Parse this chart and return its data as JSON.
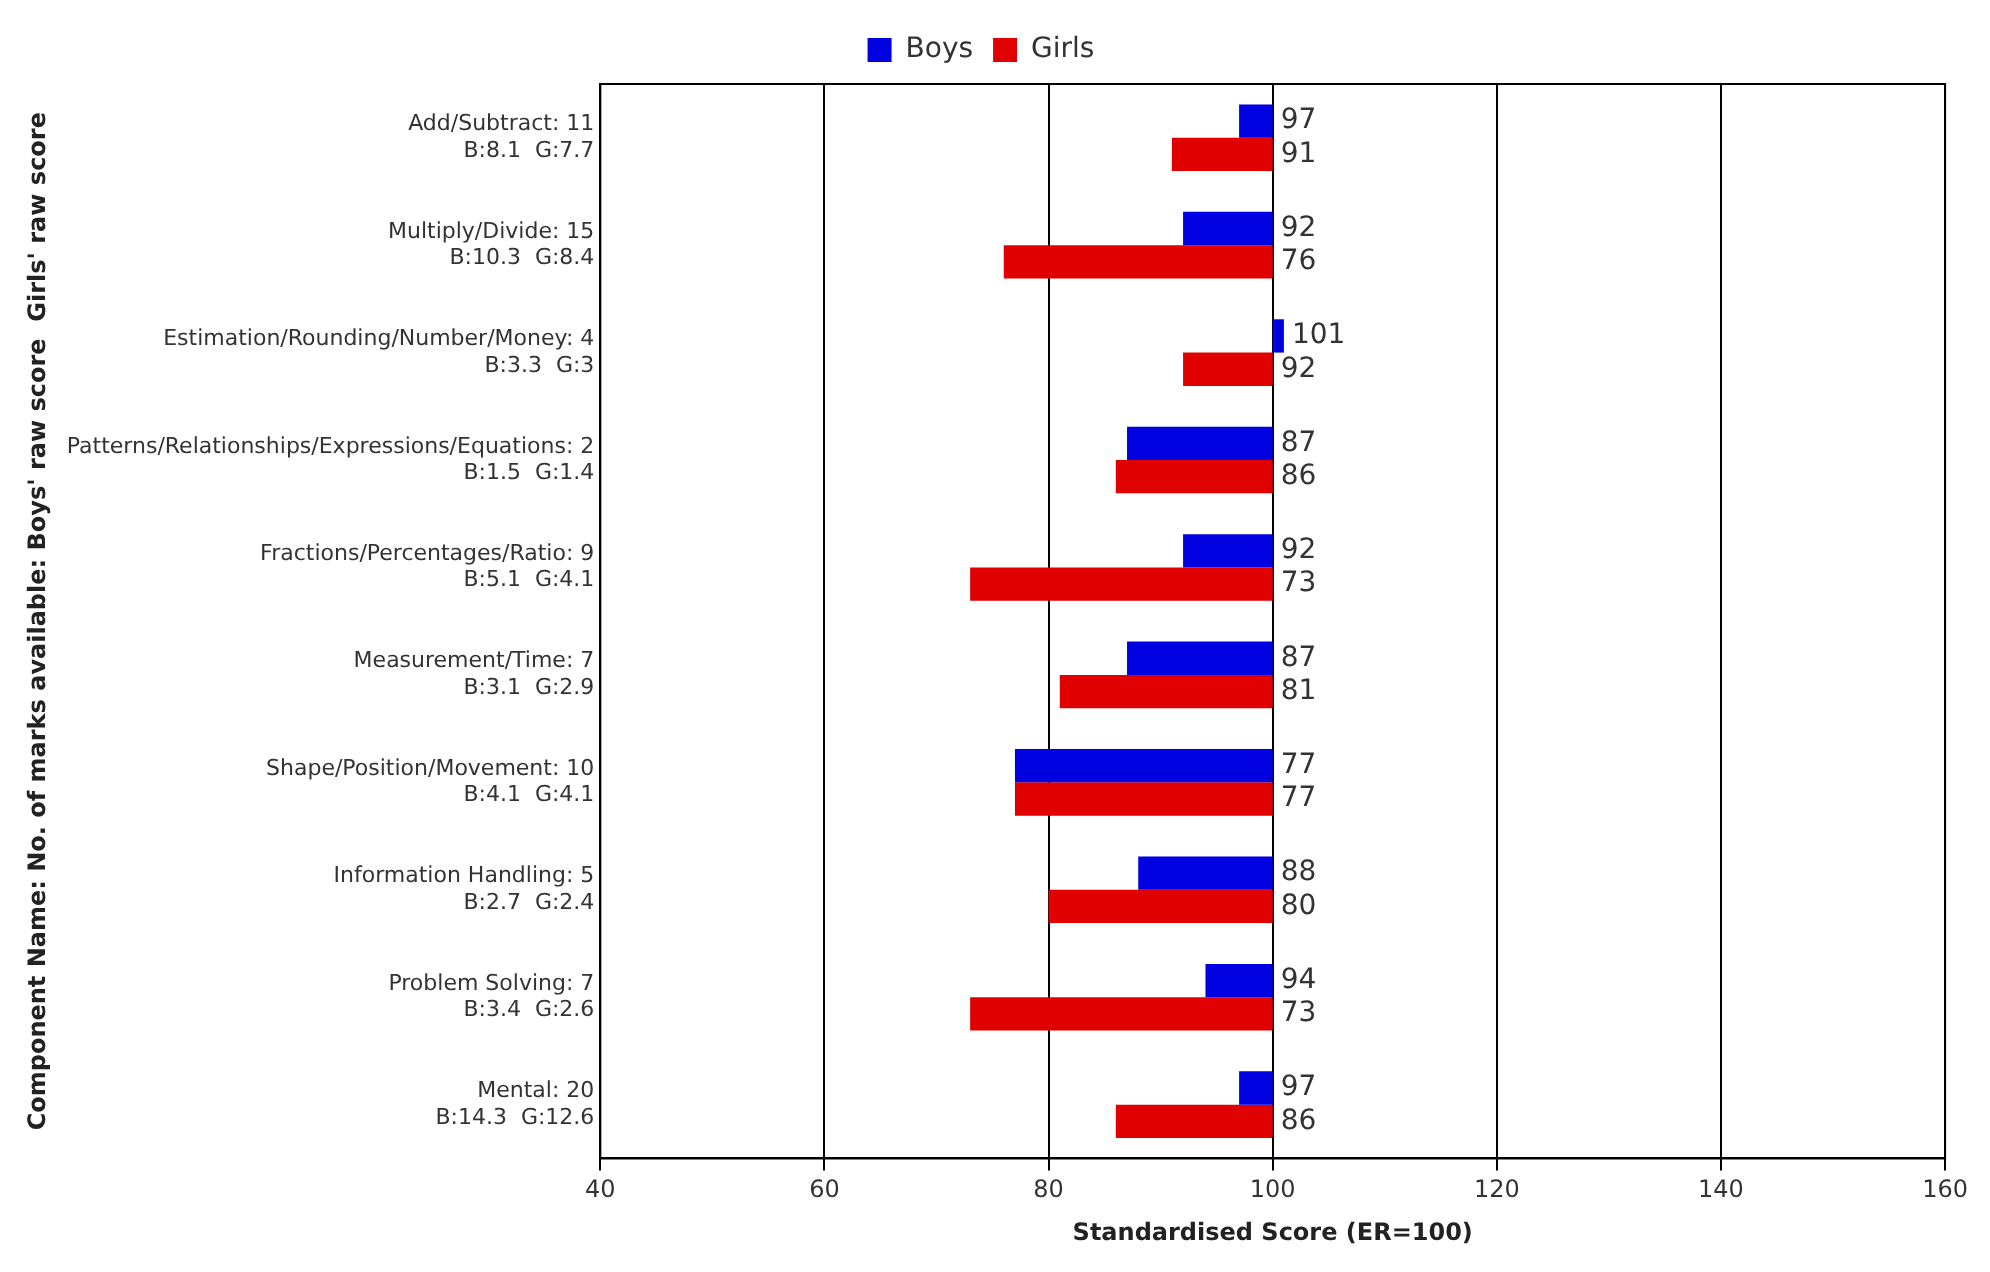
{
  "chart_data": {
    "type": "bar",
    "orientation": "horizontal",
    "xlabel": "Standardised Score (ER=100)",
    "ylabel": "Component Name: No. of marks available: Boys' raw score  Girls' raw score",
    "categories": [
      "Add/Subtract: 11\nB:8.1  G:7.7",
      "Multiply/Divide: 15\nB:10.3  G:8.4",
      "Estimation/Rounding/Number/Money: 4\nB:3.3  G:3",
      "Patterns/Relationships/Expressions/Equations: 2\nB:1.5  G:1.4",
      "Fractions/Percentages/Ratio: 9\nB:5.1  G:4.1",
      "Measurement/Time: 7\nB:3.1  G:2.9",
      "Shape/Position/Movement: 10\nB:4.1  G:4.1",
      "Information Handling: 5\nB:2.7  G:2.4",
      "Problem Solving: 7\nB:3.4  G:2.6",
      "Mental: 20\nB:14.3  G:12.6"
    ],
    "series": [
      {
        "name": "Boys",
        "color": "#0000e0",
        "base": [
          100,
          100,
          100,
          100,
          100,
          100,
          100,
          100,
          100,
          100
        ],
        "values": [
          -3,
          -8,
          1,
          -13,
          -8,
          -13,
          -23,
          -12,
          -6,
          -3
        ],
        "value_labels": [
          "97",
          "92",
          "101",
          "87",
          "92",
          "87",
          "77",
          "88",
          "94",
          "97"
        ]
      },
      {
        "name": "Girls",
        "color": "#e00000",
        "base": [
          100,
          100,
          100,
          100,
          100,
          100,
          100,
          100,
          100,
          100
        ],
        "values": [
          -9,
          -24,
          -8,
          -14,
          -27,
          -19,
          -23,
          -20,
          -27,
          -14
        ],
        "value_labels": [
          "91",
          "76",
          "92",
          "86",
          "73",
          "81",
          "77",
          "80",
          "73",
          "86"
        ]
      }
    ],
    "xlim": [
      40,
      160
    ],
    "xticks": [
      40,
      60,
      80,
      100,
      120,
      140,
      160
    ],
    "grid": "x",
    "legend": "top"
  }
}
